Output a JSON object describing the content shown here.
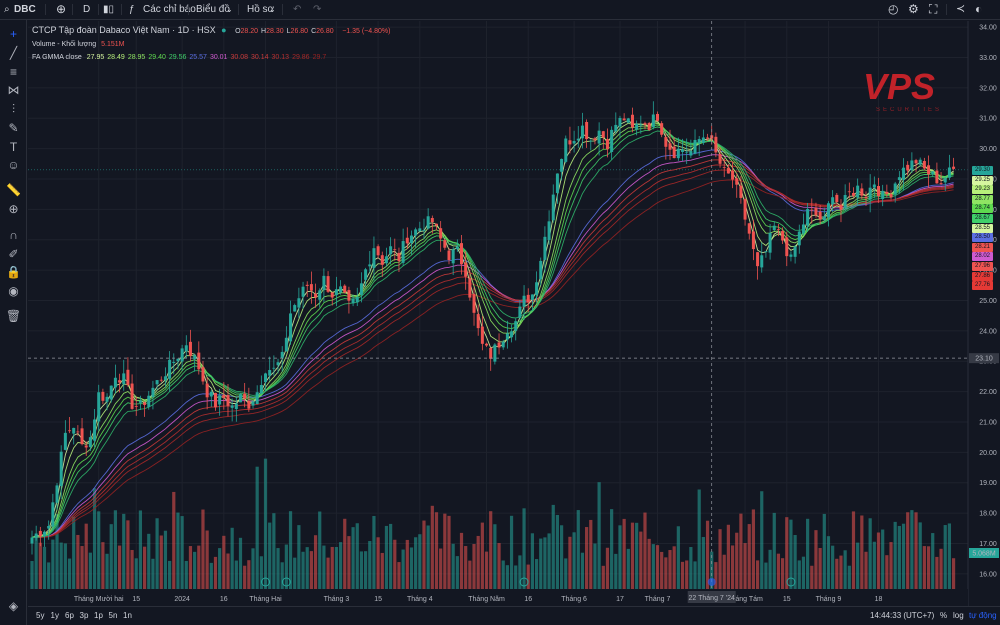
{
  "topbar": {
    "symbol": "DBC",
    "interval": "D",
    "indicators_label": "Các chỉ báo",
    "chart_type_label": "Biểu đồ",
    "profile_label": "Hồ sơ"
  },
  "legend": {
    "title": "CTCP Tập đoàn Dabaco Việt Nam · 1D · HSX",
    "ohlc": [
      {
        "k": "O",
        "v": "28.20"
      },
      {
        "k": "H",
        "v": "28.30"
      },
      {
        "k": "L",
        "v": "26.80"
      },
      {
        "k": "C",
        "v": "26.80"
      }
    ],
    "change": "−1.35 (−4.80%)",
    "volume_label": "Volume - Khối lượng",
    "volume_value": "5.151M",
    "gmma_label": "FA GMMA close",
    "gmma_values": [
      {
        "v": "27.95",
        "c": "#d6f5a0"
      },
      {
        "v": "28.49",
        "c": "#b7ef7a"
      },
      {
        "v": "28.95",
        "c": "#8fe463"
      },
      {
        "v": "29.40",
        "c": "#5ed94f"
      },
      {
        "v": "29.56",
        "c": "#3fcf6a"
      },
      {
        "v": "25.57",
        "c": "#5b6ee1"
      },
      {
        "v": "30.01",
        "c": "#d05ad0"
      },
      {
        "v": "30.08",
        "c": "#c83a3a"
      },
      {
        "v": "30.14",
        "c": "#c83a3a"
      },
      {
        "v": "30.13",
        "c": "#b52f2f"
      },
      {
        "v": "29.86",
        "c": "#a52828"
      },
      {
        "v": "29.7",
        "c": "#962222"
      }
    ]
  },
  "watermark": {
    "brand": "VPS",
    "sub": "SECURITIES"
  },
  "chart_data": {
    "type": "candlestick",
    "symbol": "DBC",
    "y_ticks": [
      "34.00",
      "33.00",
      "32.00",
      "31.00",
      "30.00",
      "29.00",
      "28.00",
      "27.00",
      "26.00",
      "25.00",
      "24.00",
      "23.00",
      "22.00",
      "21.00",
      "20.00",
      "19.00",
      "18.00",
      "17.00",
      "16.00"
    ],
    "ylim": [
      15.5,
      34.2
    ],
    "x_ticks": [
      {
        "label": "Tháng Mười hai",
        "i": 16
      },
      {
        "label": "15",
        "i": 25
      },
      {
        "label": "2024",
        "i": 36
      },
      {
        "label": "16",
        "i": 46
      },
      {
        "label": "Tháng Hai",
        "i": 56
      },
      {
        "label": "Tháng 3",
        "i": 73
      },
      {
        "label": "15",
        "i": 83
      },
      {
        "label": "Tháng 4",
        "i": 93
      },
      {
        "label": "Tháng Năm",
        "i": 109
      },
      {
        "label": "16",
        "i": 119
      },
      {
        "label": "Tháng 6",
        "i": 130
      },
      {
        "label": "17",
        "i": 141
      },
      {
        "label": "Tháng 7",
        "i": 150
      },
      {
        "label": "Tháng Tám",
        "i": 171
      },
      {
        "label": "15",
        "i": 181
      },
      {
        "label": "Tháng 9",
        "i": 191
      },
      {
        "label": "18",
        "i": 203
      }
    ],
    "crosshair": {
      "date_label": "22 Tháng 7 '24",
      "price_label": "23.10",
      "price": 23.1,
      "i": 163
    },
    "last_price": "29.30",
    "last_price_value": 29.3,
    "volume_last": "5.068M",
    "right_tags": [
      {
        "v": "29.30",
        "c": "#26a69a"
      },
      {
        "v": "29.25",
        "c": "#d6f5a0"
      },
      {
        "v": "29.23",
        "c": "#b7ef7a"
      },
      {
        "v": "28.77",
        "c": "#8fe463"
      },
      {
        "v": "28.74",
        "c": "#5ed94f"
      },
      {
        "v": "28.67",
        "c": "#3fcf6a"
      },
      {
        "v": "28.55",
        "c": "#d6f5a0"
      },
      {
        "v": "28.50",
        "c": "#5b6ee1"
      },
      {
        "v": "28.21",
        "c": "#ef5350"
      },
      {
        "v": "28.02",
        "c": "#d05ad0"
      },
      {
        "v": "27.96",
        "c": "#ef5350"
      },
      {
        "v": "27.86",
        "c": "#e53935"
      },
      {
        "v": "27.76",
        "c": "#e53935"
      }
    ],
    "anchors": [
      [
        0,
        17.2
      ],
      [
        4,
        17.6
      ],
      [
        8,
        20.6
      ],
      [
        10,
        20.9
      ],
      [
        12,
        20.2
      ],
      [
        14,
        20.5
      ],
      [
        16,
        21.9
      ],
      [
        18,
        21.8
      ],
      [
        20,
        22.6
      ],
      [
        22,
        22.4
      ],
      [
        24,
        21.6
      ],
      [
        26,
        21.5
      ],
      [
        30,
        22.3
      ],
      [
        34,
        23.0
      ],
      [
        37,
        23.6
      ],
      [
        40,
        22.8
      ],
      [
        42,
        22.0
      ],
      [
        44,
        21.6
      ],
      [
        46,
        21.8
      ],
      [
        48,
        21.5
      ],
      [
        50,
        21.8
      ],
      [
        52,
        21.6
      ],
      [
        54,
        22.0
      ],
      [
        56,
        22.8
      ],
      [
        58,
        22.7
      ],
      [
        60,
        23.1
      ],
      [
        62,
        24.6
      ],
      [
        64,
        25.1
      ],
      [
        66,
        25.5
      ],
      [
        68,
        25.2
      ],
      [
        70,
        25.7
      ],
      [
        72,
        25.2
      ],
      [
        74,
        25.3
      ],
      [
        76,
        24.8
      ],
      [
        78,
        25.0
      ],
      [
        80,
        26.0
      ],
      [
        82,
        26.8
      ],
      [
        84,
        26.3
      ],
      [
        86,
        26.7
      ],
      [
        88,
        26.4
      ],
      [
        90,
        27.1
      ],
      [
        92,
        27.3
      ],
      [
        94,
        27.5
      ],
      [
        96,
        27.6
      ],
      [
        98,
        27.0
      ],
      [
        100,
        26.5
      ],
      [
        102,
        26.6
      ],
      [
        104,
        26.0
      ],
      [
        106,
        24.5
      ],
      [
        108,
        23.5
      ],
      [
        110,
        23.2
      ],
      [
        112,
        23.6
      ],
      [
        114,
        24.1
      ],
      [
        116,
        24.3
      ],
      [
        118,
        25.0
      ],
      [
        120,
        25.2
      ],
      [
        122,
        26.4
      ],
      [
        124,
        27.8
      ],
      [
        126,
        29.3
      ],
      [
        128,
        30.2
      ],
      [
        130,
        30.4
      ],
      [
        132,
        30.7
      ],
      [
        134,
        30.3
      ],
      [
        136,
        30.6
      ],
      [
        138,
        30.2
      ],
      [
        140,
        30.8
      ],
      [
        142,
        31.0
      ],
      [
        144,
        30.6
      ],
      [
        146,
        30.9
      ],
      [
        148,
        30.8
      ],
      [
        150,
        31.1
      ],
      [
        152,
        30.2
      ],
      [
        154,
        29.9
      ],
      [
        156,
        30.0
      ],
      [
        158,
        29.9
      ],
      [
        160,
        30.3
      ],
      [
        162,
        30.5
      ],
      [
        164,
        29.8
      ],
      [
        166,
        29.2
      ],
      [
        168,
        29.0
      ],
      [
        170,
        28.2
      ],
      [
        172,
        27.2
      ],
      [
        174,
        26.0
      ],
      [
        176,
        26.6
      ],
      [
        178,
        27.4
      ],
      [
        180,
        27.0
      ],
      [
        182,
        26.3
      ],
      [
        184,
        27.2
      ],
      [
        186,
        27.9
      ],
      [
        188,
        27.8
      ],
      [
        190,
        27.6
      ],
      [
        192,
        28.6
      ],
      [
        194,
        28.0
      ],
      [
        196,
        28.5
      ],
      [
        198,
        28.7
      ],
      [
        200,
        28.5
      ],
      [
        202,
        28.9
      ],
      [
        204,
        28.4
      ],
      [
        206,
        28.6
      ],
      [
        208,
        29.2
      ],
      [
        210,
        29.4
      ],
      [
        212,
        29.6
      ],
      [
        214,
        29.3
      ],
      [
        216,
        29.1
      ],
      [
        218,
        28.9
      ],
      [
        220,
        29.2
      ],
      [
        221,
        29.3
      ]
    ],
    "volume_ylim": [
      0,
      26
    ]
  },
  "bottombar": {
    "ranges": [
      "5y",
      "1y",
      "6p",
      "3p",
      "1p",
      "5n",
      "1n"
    ],
    "time": "14:44:33 (UTC+7)",
    "percent": "%",
    "log": "log",
    "auto": "tự động"
  }
}
